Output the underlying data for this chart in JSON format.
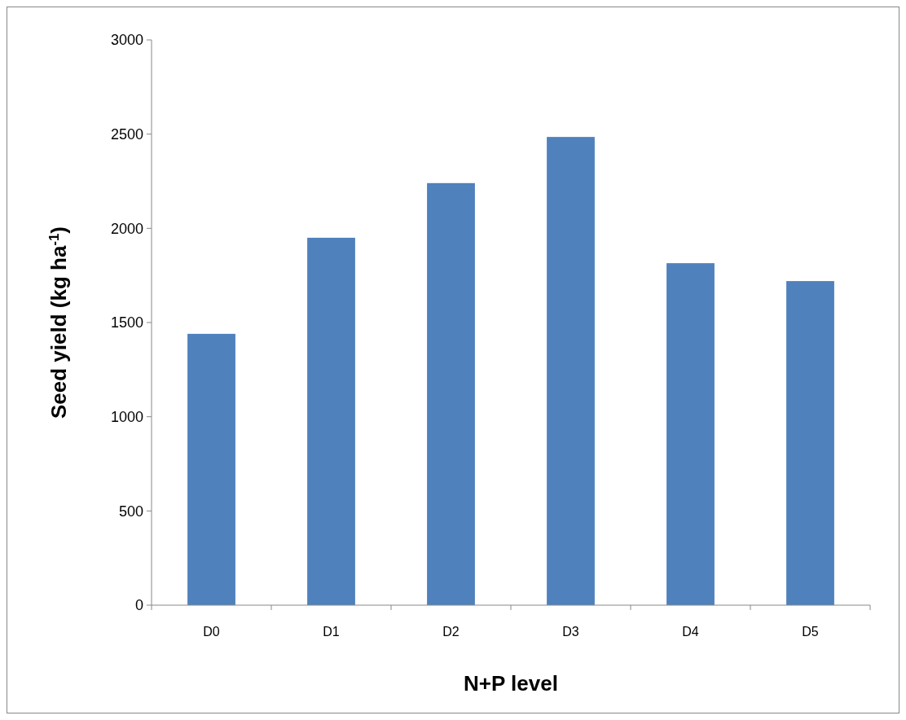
{
  "chart_data": {
    "type": "bar",
    "xlabel": "N+P level",
    "ylabel": "Seed yield (kg ha$^{-1}$)",
    "categories": [
      "D0",
      "D1",
      "D2",
      "D3",
      "D4",
      "D5"
    ],
    "values": [
      1440,
      1950,
      2240,
      2485,
      1815,
      1720
    ],
    "color": "#4f81bd",
    "ylim": [
      0,
      3000
    ],
    "yticks": [
      0,
      500,
      1000,
      1500,
      2000,
      2500,
      3000
    ],
    "grid": false
  }
}
